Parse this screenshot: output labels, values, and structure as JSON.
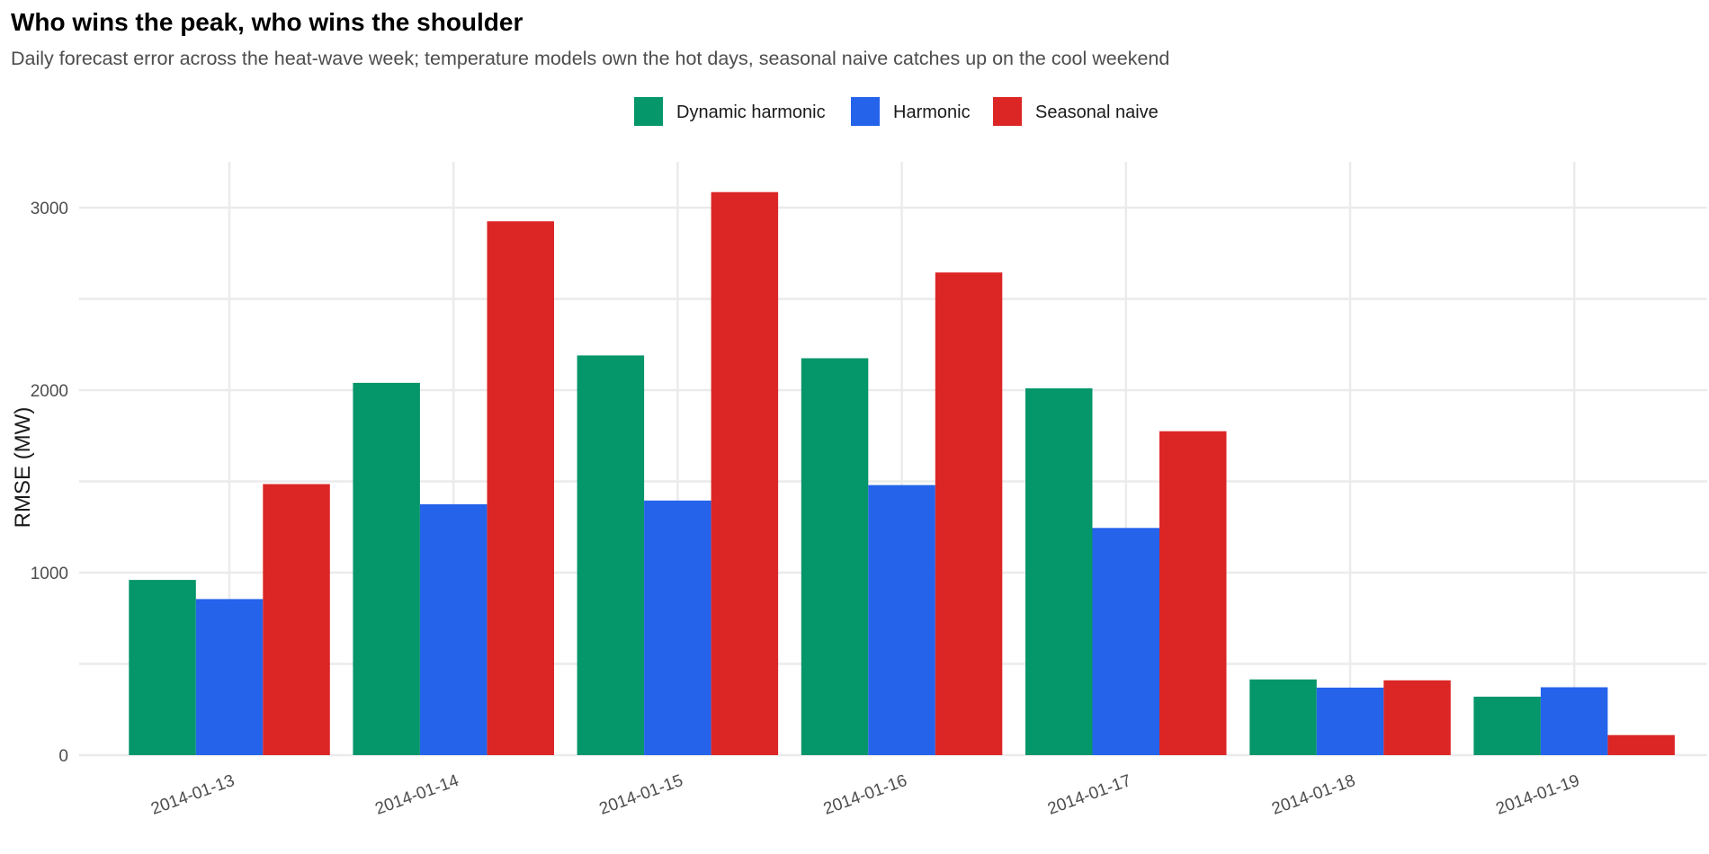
{
  "chart_data": {
    "type": "bar",
    "title": "Who wins the peak, who wins the shoulder",
    "subtitle": "Daily forecast error across the heat-wave week; temperature models own the hot days, seasonal naive catches up on the cool weekend",
    "xlabel": "",
    "ylabel": "RMSE (MW)",
    "ylim": [
      0,
      3200
    ],
    "yticks": [
      0,
      1000,
      2000,
      3000
    ],
    "grid": true,
    "legend_position": "top",
    "categories": [
      "2014-01-13",
      "2014-01-14",
      "2014-01-15",
      "2014-01-16",
      "2014-01-17",
      "2014-01-18",
      "2014-01-19"
    ],
    "series": [
      {
        "name": "Dynamic harmonic",
        "color": "#059669",
        "values": [
          960,
          2040,
          2190,
          2175,
          2010,
          415,
          320
        ]
      },
      {
        "name": "Harmonic",
        "color": "#2563eb",
        "values": [
          855,
          1375,
          1395,
          1480,
          1245,
          370,
          372
        ]
      },
      {
        "name": "Seasonal naive",
        "color": "#dc2626",
        "values": [
          1485,
          2925,
          3085,
          2645,
          1775,
          410,
          110
        ]
      }
    ]
  }
}
